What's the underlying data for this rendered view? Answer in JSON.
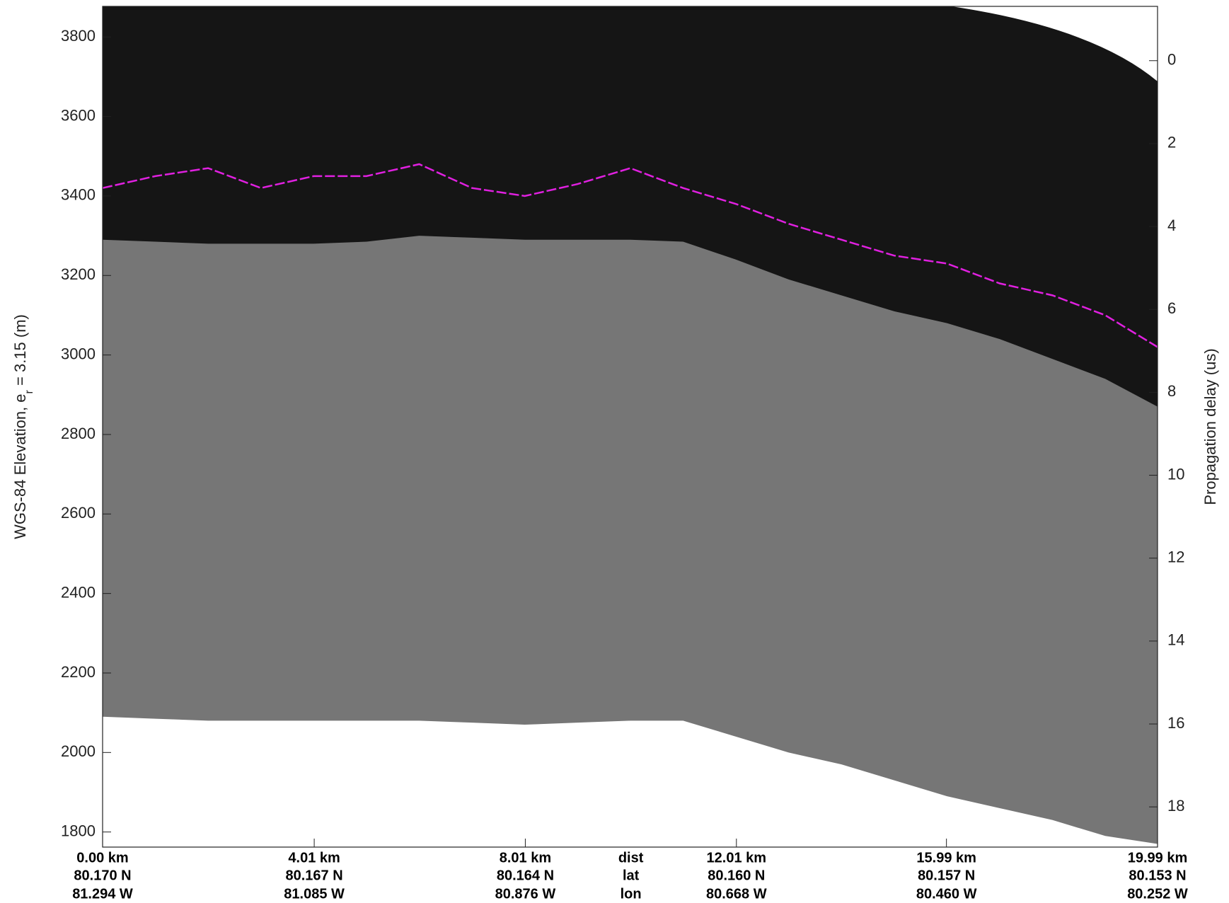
{
  "chart_data": {
    "type": "echogram",
    "ylabel": [
      "WGS-84 Elevation, e",
      "r",
      " = 3.15 (m)"
    ],
    "y2label": "Propagation delay (us)",
    "x": [
      0,
      1,
      2,
      3,
      4,
      5,
      6,
      7,
      8,
      9,
      10,
      11,
      12,
      13,
      14,
      15,
      16,
      17,
      18,
      19,
      19.99
    ],
    "xlim": [
      0,
      19.99
    ],
    "ylim": [
      1762,
      3877
    ],
    "y2lim": [
      18.97,
      -1.31
    ],
    "series": [
      {
        "color": "#767676",
        "values": [
          3290,
          3285,
          3280,
          3280,
          3280,
          3285,
          3300,
          3295,
          3290,
          3290,
          3290,
          3285,
          3240,
          3190,
          3150,
          3110,
          3080,
          3040,
          2990,
          2940,
          2870
        ]
      },
      {
        "color": "#ffffff",
        "values": [
          2090,
          2085,
          2080,
          2080,
          2080,
          2080,
          2080,
          2075,
          2070,
          2075,
          2080,
          2080,
          2040,
          2000,
          1970,
          1930,
          1890,
          1860,
          1830,
          1790,
          1770
        ]
      },
      {
        "color": "#e020e0",
        "values": [
          3420,
          3450,
          3470,
          3420,
          3450,
          3450,
          3480,
          3420,
          3400,
          3430,
          3470,
          3420,
          3380,
          3330,
          3290,
          3250,
          3230,
          3180,
          3150,
          3100,
          3020
        ]
      }
    ],
    "yticks": [
      1800,
      2000,
      2200,
      2400,
      2600,
      2800,
      3000,
      3200,
      3400,
      3600,
      3800
    ],
    "y2ticks": [
      0,
      2,
      4,
      6,
      8,
      10,
      12,
      14,
      16,
      18
    ],
    "xticks": [
      {
        "value": 0,
        "label": "0.00 km"
      },
      {
        "value": 4.01,
        "label": "4.01 km"
      },
      {
        "value": 8.01,
        "label": "8.01 km"
      },
      {
        "value": 12.01,
        "label": "12.01 km"
      },
      {
        "value": 15.99,
        "label": "15.99 km"
      },
      {
        "value": 19.99,
        "label": "19.99 km"
      }
    ],
    "xtick_lat": [
      "80.170 N",
      "80.167 N",
      "80.164 N",
      "80.160 N",
      "80.157 N",
      "80.153 N"
    ],
    "xtick_lon": [
      "81.294 W",
      "81.085 W",
      "80.876 W",
      "80.668 W",
      "80.460 W",
      "80.252 W"
    ],
    "xtick_rows": [
      "dist",
      "lat",
      "lon"
    ]
  }
}
